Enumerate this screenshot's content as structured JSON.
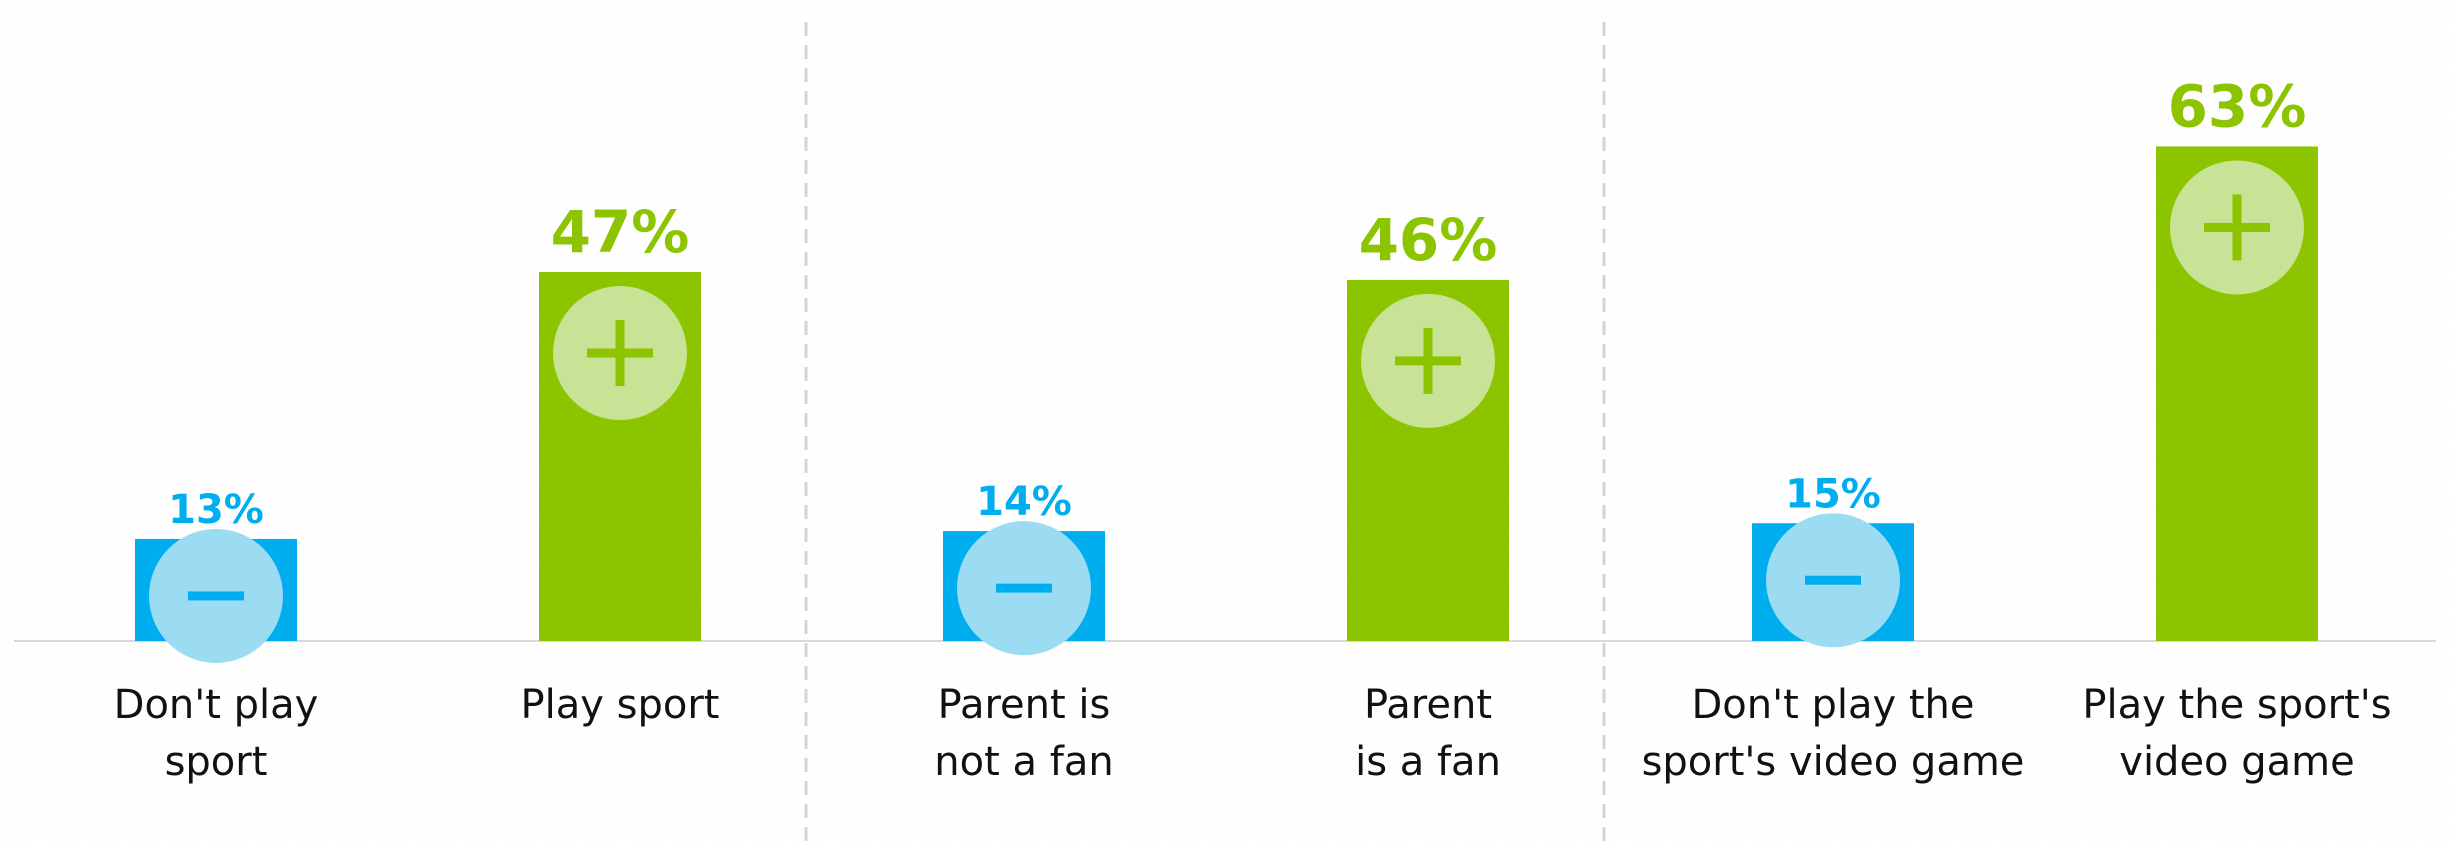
{
  "chart_data": {
    "type": "bar",
    "groups": [
      {
        "bars": [
          {
            "category": "Don't play sport",
            "label_lines": [
              "Don't play",
              "sport"
            ],
            "value": 13,
            "value_label": "13%",
            "polarity": "negative"
          },
          {
            "category": "Play sport",
            "label_lines": [
              "Play sport"
            ],
            "value": 47,
            "value_label": "47%",
            "polarity": "positive"
          }
        ]
      },
      {
        "bars": [
          {
            "category": "Parent is not a fan",
            "label_lines": [
              "Parent is",
              "not a fan"
            ],
            "value": 14,
            "value_label": "14%",
            "polarity": "negative"
          },
          {
            "category": "Parent is a fan",
            "label_lines": [
              "Parent",
              "is a fan"
            ],
            "value": 46,
            "value_label": "46%",
            "polarity": "positive"
          }
        ]
      },
      {
        "bars": [
          {
            "category": "Don't play the sport's video game",
            "label_lines": [
              "Don't play the",
              "sport's video game"
            ],
            "value": 15,
            "value_label": "15%",
            "polarity": "negative"
          },
          {
            "category": "Play the sport's video game",
            "label_lines": [
              "Play the sport's",
              "video game"
            ],
            "value": 63,
            "value_label": "63%",
            "polarity": "positive"
          }
        ]
      }
    ],
    "ylim": [
      0,
      100
    ],
    "grid": false,
    "legend": "none",
    "colors": {
      "negative": "#00aeef",
      "positive": "#8cc400",
      "negative_icon": "#9bdcf3",
      "positive_icon": "#c9e396",
      "baseline": "#d9d9d9",
      "separator": "#d4d4d4"
    },
    "icons": {
      "negative": "minus-icon",
      "positive": "plus-icon"
    }
  }
}
